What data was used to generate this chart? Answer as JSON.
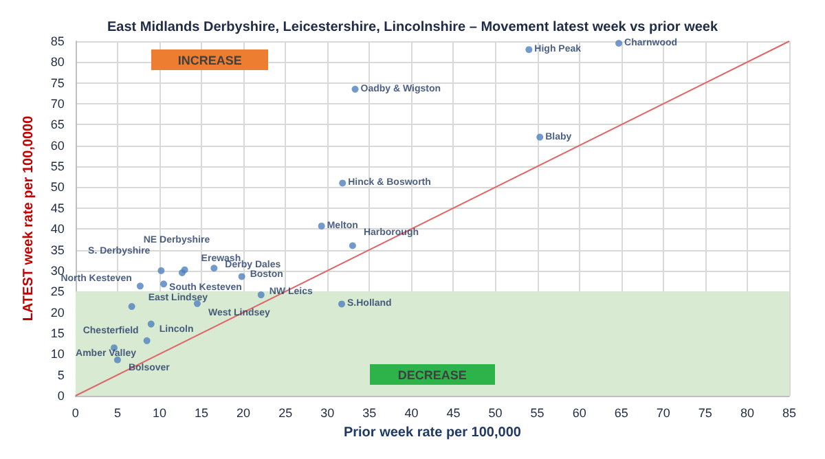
{
  "chart_data": {
    "type": "scatter",
    "title": "East Midlands Derbyshire, Leicestershire, Lincolnshire – Movement latest week vs prior week",
    "xlabel": "Prior week rate per 100,000",
    "ylabel": "LATEST week rate per 100,0000",
    "xlim": [
      0,
      85
    ],
    "ylim": [
      0,
      85
    ],
    "xticks": [
      0,
      5,
      10,
      15,
      20,
      25,
      30,
      35,
      40,
      45,
      50,
      55,
      60,
      65,
      70,
      75,
      80,
      85
    ],
    "yticks": [
      0,
      5,
      10,
      15,
      20,
      25,
      30,
      35,
      40,
      45,
      50,
      55,
      60,
      65,
      70,
      75,
      80,
      85
    ],
    "grid": true,
    "marker": "circle",
    "series": [
      {
        "color": "#4f81bd",
        "x": [
          64.7,
          54,
          55.3,
          33.3,
          31.8,
          29.3,
          33,
          31.7,
          10.2,
          12.7,
          13,
          10.5,
          16.5,
          19.8,
          22.1,
          7.7,
          6.7,
          14.5,
          9,
          8.5,
          4.6,
          5
        ],
        "values": [
          84.5,
          83,
          62,
          73.5,
          51,
          40.7,
          36,
          22,
          30,
          29.5,
          30.2,
          26.8,
          30.6,
          28.6,
          24.2,
          26.3,
          21.4,
          22.1,
          17.2,
          13.2,
          11.5,
          8.6
        ]
      },
      {
        "type": "line",
        "color": "#e06666",
        "x": [
          0,
          85
        ],
        "values": [
          0,
          85
        ],
        "marker": "none"
      }
    ],
    "bands": [
      {
        "axis": "y",
        "from": 0,
        "to": 25,
        "color": "#d9ead3"
      }
    ],
    "annotations": [
      "INCREASE",
      "DECREASE",
      {
        "text": "Charnwood",
        "x": 64.7,
        "y": 84.5
      },
      {
        "text": "High Peak",
        "x": 54,
        "y": 83
      },
      {
        "text": "Blaby",
        "x": 55.3,
        "y": 62
      },
      {
        "text": "Oadby & Wigston",
        "x": 33.3,
        "y": 73.5
      },
      {
        "text": "Hinck & Bosworth",
        "x": 31.8,
        "y": 51
      },
      {
        "text": "Melton",
        "x": 29.3,
        "y": 40.7
      },
      {
        "text": "Harborough",
        "x": 33,
        "y": 36
      },
      {
        "text": "S.Holland",
        "x": 31.7,
        "y": 22
      },
      {
        "text": "S. Derbyshire",
        "x": 10.2,
        "y": 30
      },
      {
        "text": "NE Derbyshire",
        "x": 12.7,
        "y": 29.5
      },
      {
        "text": "Erewash",
        "x": 13,
        "y": 30.2
      },
      {
        "text": "South Kesteven",
        "x": 10.5,
        "y": 26.8
      },
      {
        "text": "Derby Dales",
        "x": 16.5,
        "y": 30.6
      },
      {
        "text": "Boston",
        "x": 19.8,
        "y": 28.6
      },
      {
        "text": "NW Leics",
        "x": 22.1,
        "y": 24.2
      },
      {
        "text": "North Kesteven",
        "x": 7.7,
        "y": 26.3
      },
      {
        "text": "East Lindsey",
        "x": 6.7,
        "y": 21.4
      },
      {
        "text": "West Lindsey",
        "x": 14.5,
        "y": 22.1
      },
      {
        "text": "Lincoln",
        "x": 9,
        "y": 17.2
      },
      {
        "text": "Chesterfield",
        "x": 8.5,
        "y": 13.2
      },
      {
        "text": "Amber Valley",
        "x": 4.6,
        "y": 11.5
      },
      {
        "text": "Bolsover",
        "x": 5,
        "y": 8.6
      }
    ]
  }
}
